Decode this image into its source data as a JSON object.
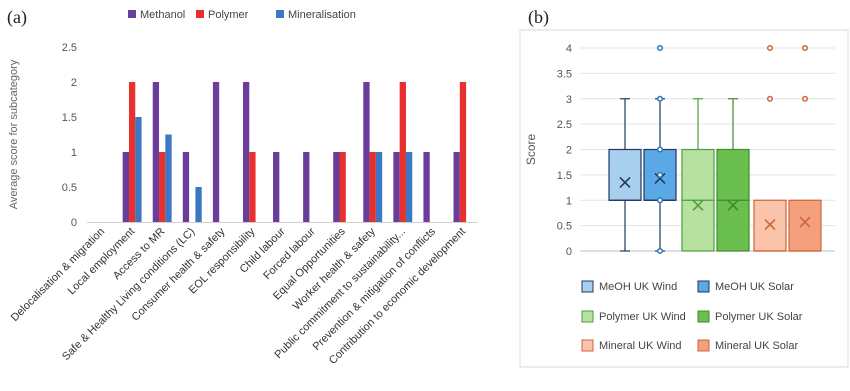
{
  "figure": {
    "label_a": "(a)",
    "label_b": "(b)"
  },
  "chart_data": [
    {
      "type": "bar",
      "panel": "(a)",
      "ylabel": "Average score for subcategory",
      "ylim": [
        0,
        2.5
      ],
      "yticks": [
        0,
        0.5,
        1,
        1.5,
        2,
        2.5
      ],
      "legend": "top",
      "grid": false,
      "categories": [
        "Delocalisation & migration",
        "Local employment",
        "Access to MR",
        "Safe & Healthy Living conditions (LC)",
        "Consumer health & safety",
        "EOL responsibility",
        "Child labour",
        "Forced labour",
        "Equal Opportunities",
        "Worker health & safety",
        "Public commitment to sustainability...",
        "Prevention & mitigation of conflicts",
        "Contribution to economic development"
      ],
      "series": [
        {
          "name": "Methanol",
          "color": "#6a3d9a",
          "values": [
            0,
            1,
            2,
            1,
            2,
            2,
            1,
            1,
            1,
            2,
            1,
            1,
            1
          ]
        },
        {
          "name": "Polymer",
          "color": "#e8312f",
          "values": [
            0,
            2,
            1,
            0,
            0,
            1,
            0,
            0,
            1,
            1,
            2,
            0,
            2
          ]
        },
        {
          "name": "Mineralisation",
          "color": "#3a78c2",
          "values": [
            0,
            1.5,
            1.25,
            0.5,
            0,
            0,
            0,
            0,
            0,
            1,
            1,
            0,
            0
          ]
        }
      ]
    },
    {
      "type": "box",
      "panel": "(b)",
      "ylabel": "Score",
      "ylim": [
        0,
        4
      ],
      "yticks": [
        0,
        0.5,
        1,
        1.5,
        2,
        2.5,
        3,
        3.5,
        4
      ],
      "grid": true,
      "legend": "bottom",
      "series": [
        {
          "name": "MeOH UK Wind",
          "fill": "#a8d0ee",
          "stroke": "#1f3864",
          "min": 0,
          "q1": 1,
          "median": 1,
          "q3": 2,
          "max": 3,
          "mean": 1.35,
          "outliers": []
        },
        {
          "name": "MeOH UK Solar",
          "fill": "#5aa9e6",
          "stroke": "#1f3864",
          "min": 0,
          "q1": 1,
          "median": 1,
          "q3": 2,
          "max": 3,
          "mean": 1.43,
          "outliers": [
            4
          ],
          "points": [
            0,
            1,
            1.5,
            2,
            3
          ]
        },
        {
          "name": "Polymer UK Wind",
          "fill": "#b7e1a1",
          "stroke": "#4d9e3a",
          "min": 0,
          "q1": 0,
          "median": 1,
          "q3": 2,
          "max": 3,
          "mean": 0.9,
          "outliers": []
        },
        {
          "name": "Polymer UK Solar",
          "fill": "#6bbf4e",
          "stroke": "#3f8a2e",
          "min": 0,
          "q1": 0,
          "median": 1,
          "q3": 2,
          "max": 3,
          "mean": 0.9,
          "outliers": []
        },
        {
          "name": "Mineral UK Wind",
          "fill": "#f9c4aa",
          "stroke": "#d0643a",
          "min": 0,
          "q1": 0,
          "median": 0,
          "q3": 1,
          "max": 1,
          "mean": 0.52,
          "outliers": [
            3,
            4
          ]
        },
        {
          "name": "Mineral UK Solar",
          "fill": "#f4a07c",
          "stroke": "#d0643a",
          "min": 0,
          "q1": 0,
          "median": 0,
          "q3": 1,
          "max": 1,
          "mean": 0.57,
          "outliers": [
            3,
            4
          ]
        }
      ]
    }
  ]
}
